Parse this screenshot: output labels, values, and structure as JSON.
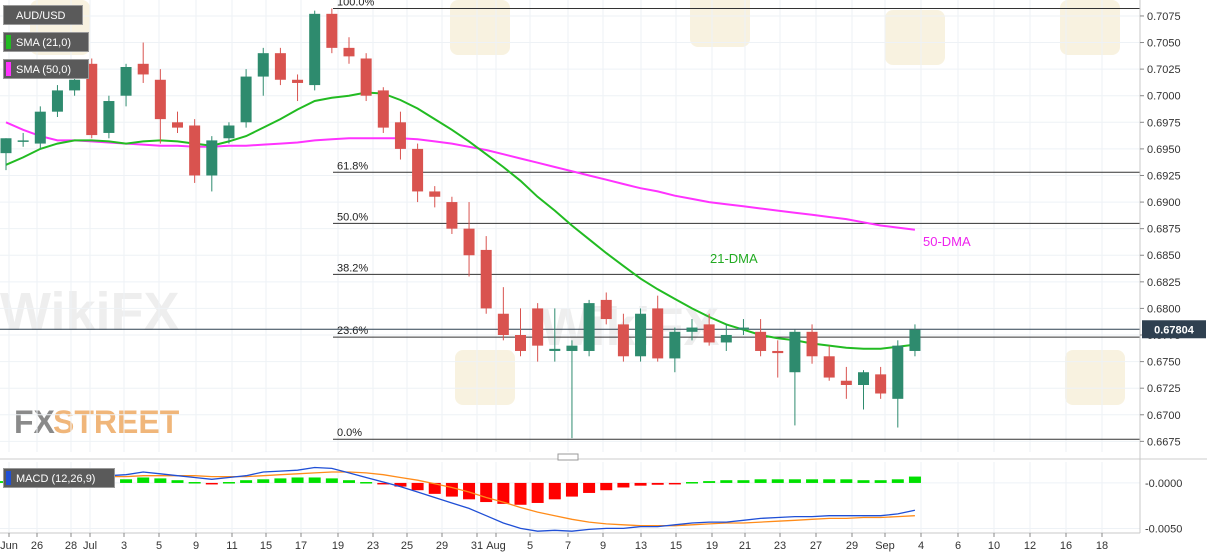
{
  "symbol": "AUD/USD",
  "indicators": [
    {
      "label": "SMA (21,0)",
      "color": "#22bb22"
    },
    {
      "label": "SMA (50,0)",
      "color": "#ff33ff"
    }
  ],
  "macd_label": "MACD (12,26,9)",
  "watermarks": {
    "fxstreet_fx": "FX",
    "fxstreet_street": "STREET",
    "wikifx": "WikiFX"
  },
  "colors": {
    "bull": "#2e8b6e",
    "bear": "#d9534f",
    "sma21": "#22bb22",
    "sma50": "#ff33ff",
    "macd_line": "#1f4fd6",
    "signal_line": "#ff8c1a",
    "hist_pos": "#00e000",
    "hist_neg": "#ff0000",
    "price_box": "#2f4050"
  },
  "chart_data": {
    "type": "candlestick",
    "title": "",
    "price_axis": {
      "min": 0.6665,
      "max": 0.709,
      "ticks": [
        "0.7075",
        "0.7050",
        "0.7025",
        "0.7000",
        "0.6975",
        "0.6950",
        "0.6925",
        "0.6900",
        "0.6875",
        "0.6850",
        "0.6825",
        "0.6800",
        "0.6775",
        "0.6750",
        "0.6725",
        "0.6700",
        "0.6675"
      ]
    },
    "current_price": "0.67804",
    "x_labels": [
      "Jun",
      "26",
      "28",
      "Jul",
      "3",
      "5",
      "9",
      "11",
      "15",
      "17",
      "19",
      "23",
      "25",
      "29",
      "31",
      "Aug",
      "5",
      "7",
      "9",
      "13",
      "15",
      "19",
      "21",
      "23",
      "27",
      "29",
      "Sep",
      "4",
      "6",
      "10",
      "12",
      "16",
      "18"
    ],
    "fibonacci": [
      {
        "label": "100.0%",
        "price": 0.7082
      },
      {
        "label": "61.8%",
        "price": 0.6928
      },
      {
        "label": "50.0%",
        "price": 0.688
      },
      {
        "label": "38.2%",
        "price": 0.6832
      },
      {
        "label": "23.6%",
        "price": 0.6773
      },
      {
        "label": "0.0%",
        "price": 0.6677
      }
    ],
    "annotations": [
      "21-DMA",
      "50-DMA"
    ],
    "candles": [
      {
        "o": 0.6946,
        "h": 0.696,
        "l": 0.693,
        "c": 0.696
      },
      {
        "o": 0.6958,
        "h": 0.6965,
        "l": 0.6952,
        "c": 0.6958
      },
      {
        "o": 0.6955,
        "h": 0.699,
        "l": 0.695,
        "c": 0.6985
      },
      {
        "o": 0.6985,
        "h": 0.701,
        "l": 0.698,
        "c": 0.7005
      },
      {
        "o": 0.7005,
        "h": 0.7025,
        "l": 0.7,
        "c": 0.7015
      },
      {
        "o": 0.703,
        "h": 0.7035,
        "l": 0.696,
        "c": 0.6963
      },
      {
        "o": 0.6965,
        "h": 0.7,
        "l": 0.696,
        "c": 0.6995
      },
      {
        "o": 0.7,
        "h": 0.703,
        "l": 0.699,
        "c": 0.7027
      },
      {
        "o": 0.703,
        "h": 0.705,
        "l": 0.7012,
        "c": 0.702
      },
      {
        "o": 0.7015,
        "h": 0.7025,
        "l": 0.6955,
        "c": 0.6978
      },
      {
        "o": 0.6975,
        "h": 0.6985,
        "l": 0.6965,
        "c": 0.697
      },
      {
        "o": 0.6972,
        "h": 0.6978,
        "l": 0.6918,
        "c": 0.6925
      },
      {
        "o": 0.6925,
        "h": 0.6962,
        "l": 0.691,
        "c": 0.6958
      },
      {
        "o": 0.696,
        "h": 0.6975,
        "l": 0.6955,
        "c": 0.6972
      },
      {
        "o": 0.6975,
        "h": 0.7025,
        "l": 0.697,
        "c": 0.7018
      },
      {
        "o": 0.7018,
        "h": 0.7045,
        "l": 0.7,
        "c": 0.704
      },
      {
        "o": 0.704,
        "h": 0.7045,
        "l": 0.701,
        "c": 0.7015
      },
      {
        "o": 0.7015,
        "h": 0.702,
        "l": 0.6995,
        "c": 0.7012
      },
      {
        "o": 0.701,
        "h": 0.708,
        "l": 0.7005,
        "c": 0.7077
      },
      {
        "o": 0.7077,
        "h": 0.7082,
        "l": 0.704,
        "c": 0.7045
      },
      {
        "o": 0.7045,
        "h": 0.7055,
        "l": 0.703,
        "c": 0.7037
      },
      {
        "o": 0.7035,
        "h": 0.704,
        "l": 0.6995,
        "c": 0.7
      },
      {
        "o": 0.7005,
        "h": 0.7008,
        "l": 0.6965,
        "c": 0.697
      },
      {
        "o": 0.6975,
        "h": 0.6985,
        "l": 0.694,
        "c": 0.695
      },
      {
        "o": 0.695,
        "h": 0.6955,
        "l": 0.69,
        "c": 0.691
      },
      {
        "o": 0.691,
        "h": 0.6915,
        "l": 0.6895,
        "c": 0.6905
      },
      {
        "o": 0.69,
        "h": 0.6905,
        "l": 0.687,
        "c": 0.6875
      },
      {
        "o": 0.6875,
        "h": 0.69,
        "l": 0.683,
        "c": 0.685
      },
      {
        "o": 0.6855,
        "h": 0.6868,
        "l": 0.6795,
        "c": 0.68
      },
      {
        "o": 0.6795,
        "h": 0.682,
        "l": 0.677,
        "c": 0.6775
      },
      {
        "o": 0.6775,
        "h": 0.68,
        "l": 0.6755,
        "c": 0.676
      },
      {
        "o": 0.68,
        "h": 0.6805,
        "l": 0.675,
        "c": 0.6765
      },
      {
        "o": 0.676,
        "h": 0.68,
        "l": 0.675,
        "c": 0.6762
      },
      {
        "o": 0.676,
        "h": 0.677,
        "l": 0.6678,
        "c": 0.6765
      },
      {
        "o": 0.676,
        "h": 0.6808,
        "l": 0.6755,
        "c": 0.6805
      },
      {
        "o": 0.6808,
        "h": 0.6815,
        "l": 0.6785,
        "c": 0.679
      },
      {
        "o": 0.6785,
        "h": 0.6795,
        "l": 0.675,
        "c": 0.6755
      },
      {
        "o": 0.6755,
        "h": 0.68,
        "l": 0.675,
        "c": 0.6795
      },
      {
        "o": 0.68,
        "h": 0.6812,
        "l": 0.675,
        "c": 0.6753
      },
      {
        "o": 0.6753,
        "h": 0.6782,
        "l": 0.674,
        "c": 0.6778
      },
      {
        "o": 0.6778,
        "h": 0.679,
        "l": 0.677,
        "c": 0.6782
      },
      {
        "o": 0.6785,
        "h": 0.6795,
        "l": 0.6765,
        "c": 0.6768
      },
      {
        "o": 0.6768,
        "h": 0.6785,
        "l": 0.676,
        "c": 0.6775
      },
      {
        "o": 0.678,
        "h": 0.679,
        "l": 0.6775,
        "c": 0.6782
      },
      {
        "o": 0.6778,
        "h": 0.679,
        "l": 0.6755,
        "c": 0.676
      },
      {
        "o": 0.676,
        "h": 0.677,
        "l": 0.6735,
        "c": 0.6758
      },
      {
        "o": 0.674,
        "h": 0.678,
        "l": 0.669,
        "c": 0.6778
      },
      {
        "o": 0.6778,
        "h": 0.6785,
        "l": 0.6748,
        "c": 0.6755
      },
      {
        "o": 0.6755,
        "h": 0.6765,
        "l": 0.6732,
        "c": 0.6735
      },
      {
        "o": 0.6732,
        "h": 0.6745,
        "l": 0.6715,
        "c": 0.6728
      },
      {
        "o": 0.6728,
        "h": 0.6742,
        "l": 0.6705,
        "c": 0.674
      },
      {
        "o": 0.6738,
        "h": 0.6745,
        "l": 0.6715,
        "c": 0.672
      },
      {
        "o": 0.6715,
        "h": 0.677,
        "l": 0.6688,
        "c": 0.6765
      },
      {
        "o": 0.676,
        "h": 0.6785,
        "l": 0.6755,
        "c": 0.678
      }
    ],
    "sma21": [
      0.6935,
      0.6942,
      0.695,
      0.6955,
      0.6958,
      0.6958,
      0.6957,
      0.6955,
      0.6957,
      0.6958,
      0.6957,
      0.6955,
      0.6953,
      0.6957,
      0.6962,
      0.697,
      0.6978,
      0.6987,
      0.6995,
      0.6998,
      0.7,
      0.7003,
      0.7002,
      0.6996,
      0.6988,
      0.6978,
      0.6968,
      0.6957,
      0.6945,
      0.6933,
      0.692,
      0.6905,
      0.6892,
      0.6878,
      0.6865,
      0.6852,
      0.684,
      0.6828,
      0.6818,
      0.6809,
      0.68,
      0.6792,
      0.6785,
      0.678,
      0.6775,
      0.6772,
      0.677,
      0.6767,
      0.6765,
      0.6763,
      0.6762,
      0.6762,
      0.6764,
      0.6766
    ],
    "sma50": [
      0.6975,
      0.6968,
      0.6962,
      0.6958,
      0.6958,
      0.6957,
      0.6956,
      0.6955,
      0.6954,
      0.6953,
      0.6953,
      0.6952,
      0.6952,
      0.6953,
      0.6953,
      0.6954,
      0.6955,
      0.6956,
      0.6958,
      0.6959,
      0.696,
      0.696,
      0.696,
      0.696,
      0.6959,
      0.6957,
      0.6955,
      0.6952,
      0.6949,
      0.6945,
      0.6941,
      0.6937,
      0.6933,
      0.6929,
      0.6925,
      0.6921,
      0.6917,
      0.6913,
      0.691,
      0.6906,
      0.6903,
      0.69,
      0.6898,
      0.6896,
      0.6894,
      0.6892,
      0.689,
      0.6888,
      0.6886,
      0.6884,
      0.6881,
      0.6878,
      0.6876,
      0.6874
    ],
    "macd": {
      "axis_ticks": [
        "-0.0000",
        "-0.0050"
      ],
      "ylim": [
        -0.0055,
        0.0023
      ],
      "macd_line": [
        0.0003,
        0.0005,
        0.0008,
        0.001,
        0.001,
        0.0009,
        0.0008,
        0.0009,
        0.0012,
        0.001,
        0.0008,
        0.0006,
        0.0004,
        0.0006,
        0.0008,
        0.0012,
        0.0013,
        0.0014,
        0.0017,
        0.0016,
        0.0011,
        0.0006,
        0.0001,
        -0.0004,
        -0.001,
        -0.0016,
        -0.0022,
        -0.0028,
        -0.0036,
        -0.0044,
        -0.005,
        -0.0053,
        -0.0052,
        -0.0053,
        -0.0051,
        -0.005,
        -0.005,
        -0.0048,
        -0.0048,
        -0.0046,
        -0.0044,
        -0.0043,
        -0.0043,
        -0.0041,
        -0.0039,
        -0.0038,
        -0.0037,
        -0.0037,
        -0.0036,
        -0.0036,
        -0.0036,
        -0.0036,
        -0.0034,
        -0.003
      ],
      "signal_line": [
        0.0003,
        0.0003,
        0.0004,
        0.0005,
        0.0006,
        0.0007,
        0.0007,
        0.0007,
        0.0008,
        0.0008,
        0.0008,
        0.0008,
        0.0007,
        0.0007,
        0.0007,
        0.0008,
        0.0009,
        0.001,
        0.0011,
        0.0012,
        0.0012,
        0.0011,
        0.0009,
        0.0006,
        0.0003,
        -0.0001,
        -0.0005,
        -0.001,
        -0.0016,
        -0.0021,
        -0.0027,
        -0.0032,
        -0.0036,
        -0.004,
        -0.0043,
        -0.0045,
        -0.0046,
        -0.0047,
        -0.0047,
        -0.0047,
        -0.0046,
        -0.0045,
        -0.0044,
        -0.0044,
        -0.0043,
        -0.0042,
        -0.0041,
        -0.004,
        -0.0039,
        -0.0039,
        -0.0038,
        -0.0038,
        -0.0037,
        -0.0036
      ],
      "histogram": [
        0.0002,
        0.0003,
        0.0004,
        0.0005,
        0.0006,
        0.0005,
        0.0003,
        0.0004,
        0.0006,
        0.0005,
        0.0003,
        0.0001,
        -0.0001,
        0.0001,
        0.0003,
        0.0004,
        0.0005,
        0.0006,
        0.0006,
        0.0005,
        0.0003,
        0.0001,
        -0.0001,
        -0.0004,
        -0.0008,
        -0.0012,
        -0.0015,
        -0.0018,
        -0.0021,
        -0.0023,
        -0.0024,
        -0.0022,
        -0.0018,
        -0.0015,
        -0.0011,
        -0.0008,
        -0.0005,
        -0.0003,
        -0.0002,
        -0.0001,
        0.0001,
        0.0002,
        0.0003,
        0.0003,
        0.0004,
        0.0004,
        0.0004,
        0.0004,
        0.0004,
        0.0004,
        0.0003,
        0.0003,
        0.0004,
        0.0007
      ]
    }
  }
}
